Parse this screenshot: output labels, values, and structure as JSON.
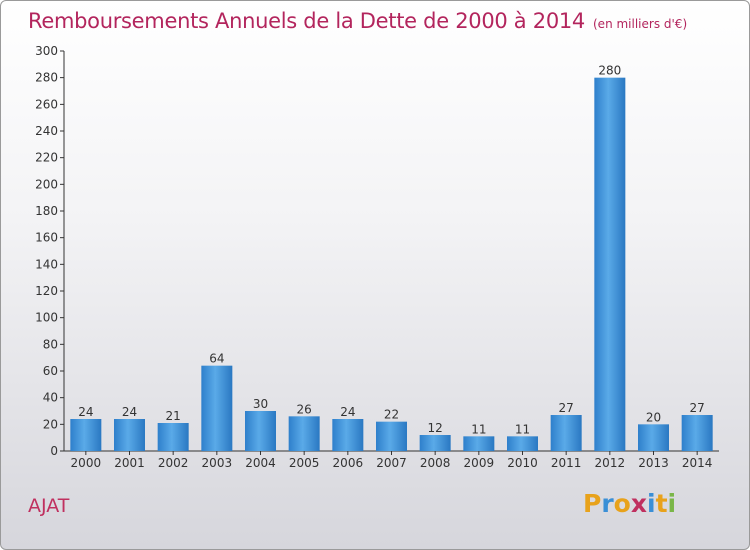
{
  "chart_data": {
    "type": "bar",
    "title": "Remboursements Annuels de la Dette de 2000 à 2014",
    "subtitle": "(en milliers d'€)",
    "categories": [
      "2000",
      "2001",
      "2002",
      "2003",
      "2004",
      "2005",
      "2006",
      "2007",
      "2008",
      "2009",
      "2010",
      "2011",
      "2012",
      "2013",
      "2014"
    ],
    "values": [
      24,
      24,
      21,
      64,
      30,
      26,
      24,
      22,
      12,
      11,
      11,
      27,
      280,
      20,
      27
    ],
    "ylim": [
      0,
      300
    ],
    "yticks": [
      0,
      20,
      40,
      60,
      80,
      100,
      120,
      140,
      160,
      180,
      200,
      220,
      240,
      260,
      280,
      300
    ],
    "grid": false,
    "bar_color": "#3a8fd6"
  },
  "footer": {
    "commune": "AJAT",
    "logo_text": "Proxiti"
  }
}
